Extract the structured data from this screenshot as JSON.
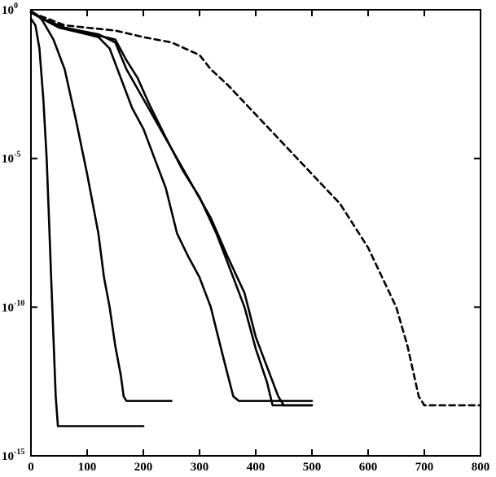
{
  "chart_data": {
    "type": "line",
    "title": "",
    "xlabel": "",
    "ylabel": "",
    "xlim": [
      0,
      800
    ],
    "ylim": [
      1e-15,
      1
    ],
    "yscale": "log",
    "grid": false,
    "x_ticks": [
      0,
      100,
      200,
      300,
      400,
      500,
      600,
      700,
      800
    ],
    "y_ticks": [
      {
        "value": 1,
        "base": "10",
        "exp": "0"
      },
      {
        "value": 1e-05,
        "base": "10",
        "exp": "-5"
      },
      {
        "value": 1e-10,
        "base": "10",
        "exp": "-10"
      },
      {
        "value": 1e-15,
        "base": "10",
        "exp": "-15"
      }
    ],
    "series": [
      {
        "style": "solid",
        "x": [
          0,
          8,
          15,
          22,
          28,
          32,
          36,
          40,
          44,
          48,
          52,
          60,
          100,
          150,
          200
        ],
        "y": [
          0.5,
          0.3,
          0.05,
          0.001,
          1e-05,
          1e-07,
          1e-09,
          1e-11,
          1e-13,
          1e-14,
          1e-14,
          1e-14,
          1e-14,
          1e-14,
          1e-14
        ]
      },
      {
        "style": "solid",
        "x": [
          0,
          10,
          20,
          40,
          60,
          80,
          100,
          110,
          120,
          130,
          140,
          150,
          160,
          165,
          170,
          200,
          250
        ],
        "y": [
          0.9,
          0.7,
          0.45,
          0.1,
          0.01,
          0.0002,
          3e-06,
          3e-07,
          3e-08,
          1e-09,
          1e-10,
          5e-12,
          5e-13,
          1e-13,
          7e-14,
          7e-14,
          7e-14
        ]
      },
      {
        "style": "solid",
        "x": [
          0,
          20,
          50,
          100,
          120,
          140,
          160,
          180,
          200,
          220,
          240,
          260,
          280,
          300,
          320,
          340,
          360,
          370,
          380,
          400,
          500
        ],
        "y": [
          0.8,
          0.5,
          0.25,
          0.15,
          0.12,
          0.05,
          0.005,
          0.0005,
          0.0001,
          1e-05,
          1e-06,
          3e-08,
          5e-09,
          1e-09,
          1e-10,
          3e-12,
          1e-13,
          7e-14,
          7e-14,
          7e-14,
          7e-14
        ]
      },
      {
        "style": "solid",
        "x": [
          0,
          20,
          60,
          120,
          150,
          170,
          200,
          230,
          260,
          290,
          320,
          350,
          380,
          400,
          420,
          440,
          450,
          460,
          500
        ],
        "y": [
          0.9,
          0.5,
          0.25,
          0.15,
          0.08,
          0.01,
          0.001,
          0.0001,
          1e-05,
          1e-06,
          1e-07,
          5e-09,
          3e-10,
          1e-11,
          1e-12,
          1e-13,
          5e-14,
          5e-14,
          5e-14
        ]
      },
      {
        "style": "solid",
        "x": [
          0,
          20,
          60,
          110,
          150,
          170,
          190,
          210,
          240,
          270,
          300,
          330,
          360,
          380,
          400,
          420,
          430,
          440,
          500
        ],
        "y": [
          0.9,
          0.5,
          0.25,
          0.15,
          0.1,
          0.02,
          0.005,
          0.0007,
          5e-05,
          4e-06,
          5e-07,
          3e-08,
          1e-09,
          1e-10,
          4e-12,
          3e-13,
          5e-14,
          5e-14,
          5e-14
        ]
      },
      {
        "style": "dashed",
        "x": [
          0,
          30,
          60,
          100,
          150,
          200,
          250,
          300,
          320,
          350,
          400,
          450,
          500,
          550,
          600,
          650,
          670,
          690,
          700,
          750,
          800
        ],
        "y": [
          0.8,
          0.5,
          0.3,
          0.25,
          0.2,
          0.12,
          0.08,
          0.03,
          0.01,
          0.003,
          0.0003,
          3e-05,
          3e-06,
          3e-07,
          1e-08,
          1e-10,
          5e-12,
          1e-13,
          5e-14,
          5e-14,
          5e-14
        ]
      }
    ]
  }
}
